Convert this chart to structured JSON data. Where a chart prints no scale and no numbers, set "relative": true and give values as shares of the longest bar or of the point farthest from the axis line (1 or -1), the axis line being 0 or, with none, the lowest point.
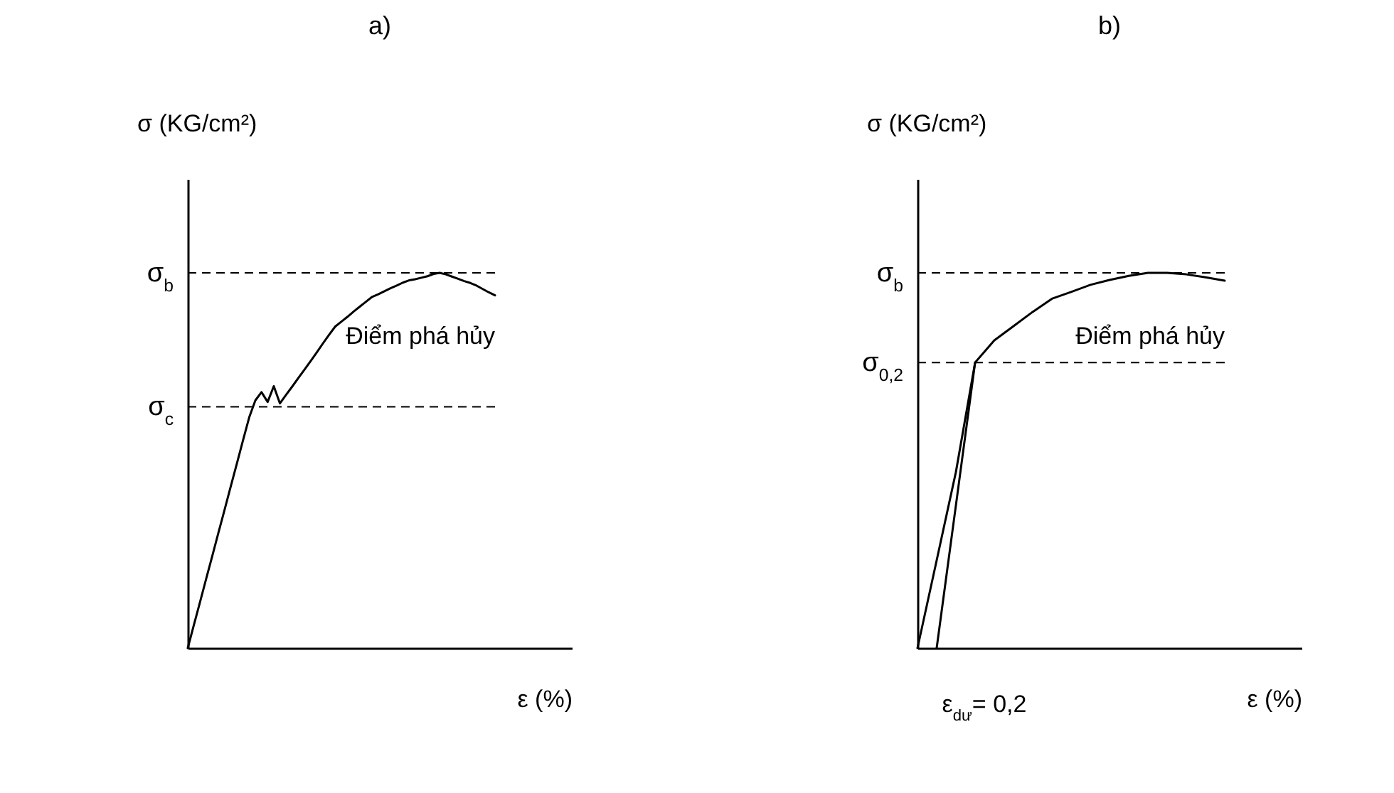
{
  "chart_data": [
    {
      "type": "line",
      "title": "a)",
      "xlabel": "ε  (%)",
      "ylabel": "σ  (KG/cm²)",
      "relative": true,
      "categories": [
        null,
        null,
        null,
        null,
        null,
        null,
        null,
        null,
        null,
        null,
        null,
        null,
        null,
        null,
        null,
        null,
        null,
        null,
        null,
        null,
        null,
        null,
        null,
        null,
        null,
        null,
        null,
        null,
        null,
        null,
        null,
        null,
        null,
        null,
        null,
        null,
        null,
        null,
        null,
        null,
        null,
        null,
        null,
        null,
        null,
        null,
        null,
        null,
        null,
        null,
        null
      ],
      "series": [
        {
          "color": "#000000",
          "values": [
            0,
            0.062,
            0.123,
            0.185,
            0.246,
            0.308,
            0.369,
            0.431,
            0.492,
            0.554,
            0.615,
            0.66,
            0.682,
            0.656,
            0.698,
            0.652,
            0.675,
            0.697,
            0.72,
            0.742,
            0.765,
            0.788,
            0.812,
            0.835,
            0.857,
            0.87,
            0.883,
            0.897,
            0.91,
            0.923,
            0.936,
            0.943,
            0.951,
            0.959,
            0.966,
            0.974,
            0.98,
            0.983,
            0.987,
            0.991,
            0.997,
            1.0,
            0.996,
            0.99,
            0.984,
            0.978,
            0.973,
            0.966,
            0.957,
            0.948,
            0.94
          ]
        }
      ],
      "ref_lines": [
        {
          "axis": "y",
          "value": 1.0,
          "label": "σ$_{b}$",
          "line_style": "dashed"
        },
        {
          "axis": "y",
          "value": 0.643,
          "label": "σ$_{c}$",
          "line_style": "dashed"
        }
      ],
      "annotations": [
        "Điểm phá hủy"
      ]
    },
    {
      "type": "line",
      "title": "b)",
      "xlabel": "ε  (%)",
      "ylabel": "σ  (KG/cm²)",
      "relative": true,
      "categories": [
        null,
        null,
        null,
        null,
        null,
        null,
        null,
        null,
        null,
        null,
        null,
        null,
        null,
        null,
        null,
        null,
        null
      ],
      "series": [
        {
          "color": "#000000",
          "values": [
            0,
            0.234,
            0.469,
            0.761,
            0.82,
            0.858,
            0.896,
            0.931,
            0.949,
            0.968,
            0.981,
            0.992,
            1.0,
            1.0,
            0.996,
            0.988,
            0.979
          ]
        },
        {
          "color": "#000000",
          "values": [
            null,
            0,
            0.38,
            0.761,
            null,
            null,
            null,
            null,
            null,
            null,
            null,
            null,
            null,
            null,
            null,
            null,
            null
          ]
        }
      ],
      "ref_lines": [
        {
          "axis": "y",
          "value": 1.0,
          "label": "σ$_{b}$",
          "line_style": "dashed"
        },
        {
          "axis": "y",
          "value": 0.761,
          "label": "σ$_{0,2}$",
          "line_style": "dashed"
        }
      ],
      "annotations": [
        "Điểm phá hủy",
        "ε$_{dư}$= 0,2"
      ]
    }
  ]
}
